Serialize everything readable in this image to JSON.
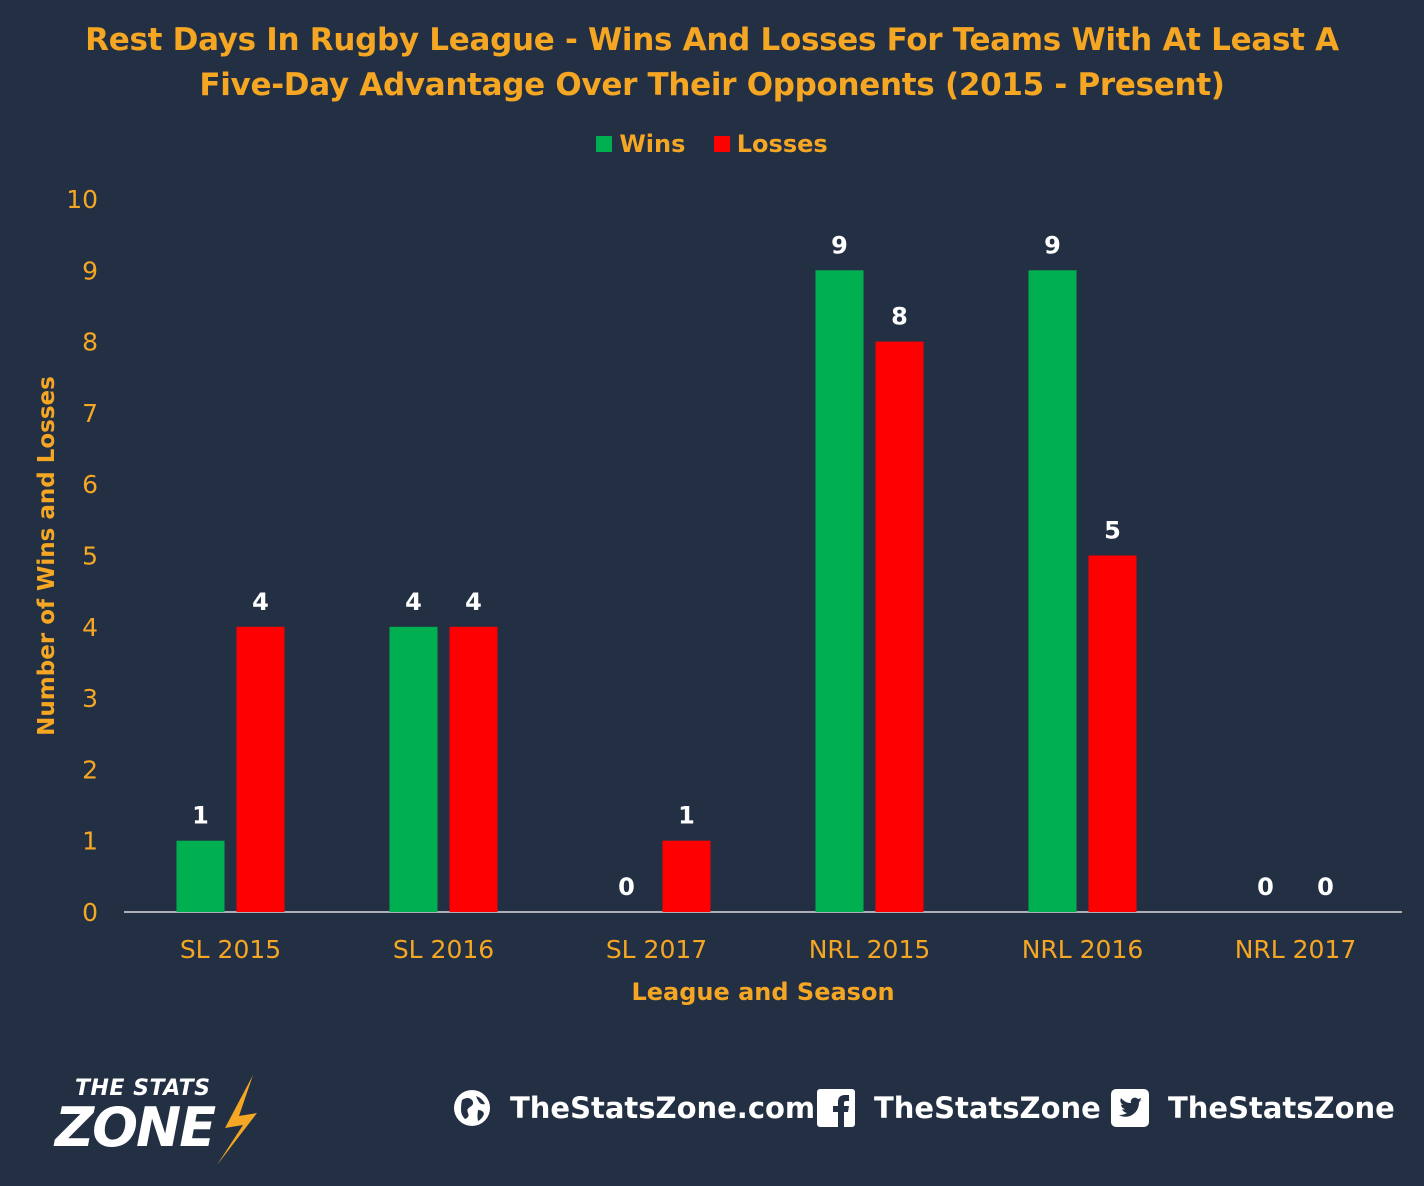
{
  "chart_data": {
    "type": "bar",
    "title_lines": [
      "Rest Days In Rugby League - Wins And Losses For Teams With At Least A",
      "Five-Day Advantage Over Their Opponents (2015 - Present)"
    ],
    "categories": [
      "SL 2015",
      "SL 2016",
      "SL 2017",
      "NRL 2015",
      "NRL 2016",
      "NRL 2017"
    ],
    "series": [
      {
        "name": "Wins",
        "color": "#00b050",
        "values": [
          1,
          4,
          0,
          9,
          9,
          0
        ]
      },
      {
        "name": "Losses",
        "color": "#ff0000",
        "values": [
          4,
          4,
          1,
          8,
          5,
          0
        ]
      }
    ],
    "xlabel": "League and Season",
    "ylabel": "Number of Wins and Losses",
    "ylim": [
      0,
      10
    ],
    "yticks": [
      0,
      1,
      2,
      3,
      4,
      5,
      6,
      7,
      8,
      9,
      10
    ],
    "grid": false,
    "legend_position": "top-center",
    "text_color": "#f5a623",
    "label_color": "#ffffff",
    "background": "#233044"
  },
  "footer": {
    "logo_top": "THE STATS",
    "logo_bottom": "ZONE",
    "website": "TheStatsZone.com",
    "facebook": "TheStatsZone",
    "twitter": "TheStatsZone",
    "icons": [
      "globe-icon",
      "facebook-icon",
      "twitter-icon"
    ]
  }
}
